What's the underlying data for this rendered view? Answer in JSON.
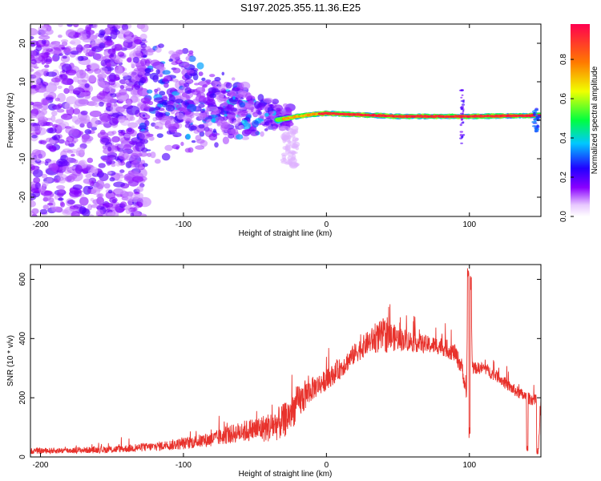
{
  "figure_title": "S197.2025.355.11.36.E25",
  "colors": {
    "snr_line": "#e8322c",
    "axis": "#000000",
    "background": "#ffffff"
  },
  "chart_data": [
    {
      "id": "spectrogram",
      "type": "heatmap",
      "title": "",
      "xlabel": "Height of straight line (km)",
      "ylabel": "Frequency (Hz)",
      "xlim": [
        -207,
        150
      ],
      "ylim": [
        -25,
        25
      ],
      "xticks": [
        -200,
        -100,
        0,
        100
      ],
      "yticks": [
        -20,
        -10,
        0,
        10,
        20
      ],
      "colorbar": {
        "label": "Normalized spectral amplitude",
        "range": [
          0,
          0.98
        ],
        "ticks": [
          0.0,
          0.2,
          0.4,
          0.6,
          0.8
        ],
        "tick_labels": [
          "0.0",
          "0.2",
          "0.4",
          "0.6",
          "0.8"
        ],
        "colormap": [
          "#ffffff",
          "#8a00ff",
          "#2200ff",
          "#00c8ff",
          "#00ff40",
          "#f0ff00",
          "#ff7a00",
          "#ff0050"
        ]
      },
      "description_regions": [
        {
          "x_range": [
            -207,
            -130
          ],
          "freq_range": [
            -25,
            25
          ],
          "amplitude": 0.15,
          "note": "diffuse noise"
        },
        {
          "x_range": [
            -130,
            -25
          ],
          "freq_range": [
            -15,
            15
          ],
          "amplitude": 0.25,
          "note": "converging scatter"
        },
        {
          "x_range": [
            -25,
            150
          ],
          "freq": [
            0.0,
            1.0
          ],
          "amplitude": 0.95,
          "note": "narrow band near 0-1 Hz"
        }
      ],
      "band_line": {
        "x": [
          -35,
          -20,
          -10,
          0,
          50,
          100,
          140,
          150
        ],
        "freq": [
          0.0,
          1.0,
          1.5,
          1.8,
          1.0,
          1.0,
          1.2,
          1.3
        ]
      }
    },
    {
      "id": "snr",
      "type": "line",
      "title": "",
      "xlabel": "Height of straight line (km)",
      "ylabel": "SNR (10 * v/v)",
      "xlim": [
        -207,
        150
      ],
      "ylim": [
        0,
        650
      ],
      "xticks": [
        -200,
        -100,
        0,
        100
      ],
      "yticks": [
        0,
        200,
        400,
        600
      ],
      "series": [
        {
          "name": "SNR",
          "x": [
            -207,
            -180,
            -150,
            -120,
            -100,
            -80,
            -60,
            -40,
            -30,
            -20,
            -10,
            0,
            10,
            20,
            30,
            40,
            50,
            60,
            70,
            80,
            90,
            95,
            98,
            99,
            100,
            101,
            102,
            110,
            120,
            130,
            140,
            147,
            148,
            150
          ],
          "y": [
            20,
            22,
            25,
            35,
            45,
            60,
            85,
            100,
            120,
            180,
            230,
            260,
            300,
            350,
            390,
            410,
            400,
            390,
            380,
            375,
            350,
            300,
            200,
            640,
            60,
            620,
            300,
            300,
            270,
            230,
            200,
            190,
            10,
            180
          ],
          "noise": [
            10,
            10,
            12,
            15,
            20,
            25,
            35,
            50,
            60,
            60,
            40,
            35,
            35,
            35,
            40,
            60,
            40,
            35,
            30,
            30,
            30,
            30,
            20,
            0,
            0,
            0,
            20,
            20,
            20,
            20,
            20,
            20,
            0,
            20
          ]
        }
      ]
    }
  ]
}
